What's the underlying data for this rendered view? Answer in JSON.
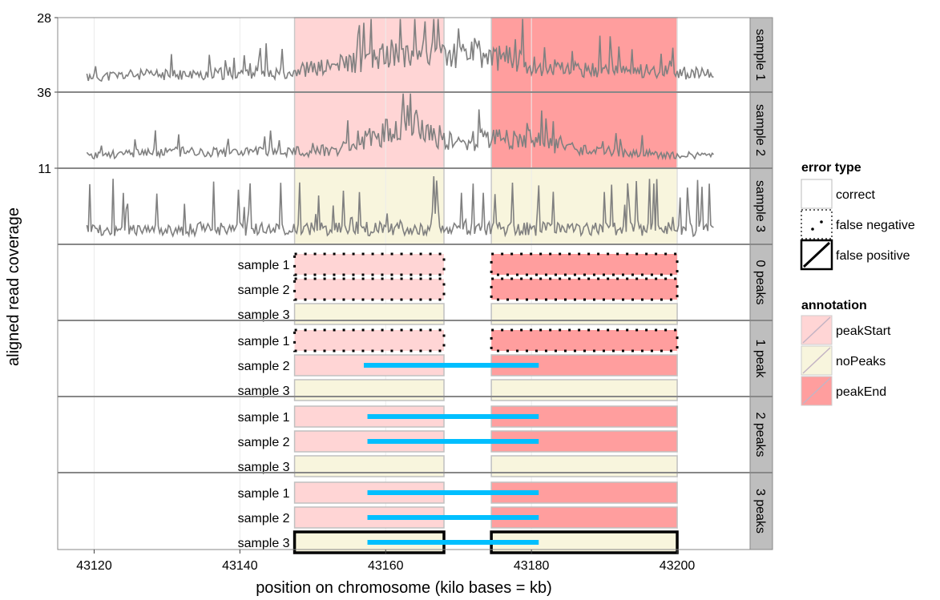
{
  "chart_data": {
    "type": "line",
    "xlabel": "position on chromosome (kilo bases = kb)",
    "ylabel": "aligned read coverage",
    "xlim": [
      43115,
      43210
    ],
    "x_ticks": [
      43120,
      43140,
      43160,
      43180,
      43200
    ],
    "grid": true,
    "coverage_panels": [
      {
        "strip": "sample 1",
        "ymax_label": "28",
        "ymax": 28,
        "noise_seed": 11,
        "trace": [
          [
            43119,
            4
          ],
          [
            43125,
            5
          ],
          [
            43130,
            5
          ],
          [
            43135,
            5
          ],
          [
            43140,
            6
          ],
          [
            43145,
            6
          ],
          [
            43148,
            7
          ],
          [
            43152,
            8
          ],
          [
            43155,
            10
          ],
          [
            43158,
            11
          ],
          [
            43160,
            13
          ],
          [
            43162,
            14
          ],
          [
            43164,
            15
          ],
          [
            43166,
            14
          ],
          [
            43168,
            13
          ],
          [
            43170,
            13
          ],
          [
            43172,
            14
          ],
          [
            43174,
            12
          ],
          [
            43176,
            12
          ],
          [
            43178,
            11
          ],
          [
            43180,
            9
          ],
          [
            43182,
            8
          ],
          [
            43186,
            7
          ],
          [
            43190,
            7
          ],
          [
            43195,
            7
          ],
          [
            43200,
            6
          ],
          [
            43205,
            5
          ]
        ]
      },
      {
        "strip": "sample 2",
        "ymax_label": "36",
        "ymax": 36,
        "noise_seed": 23,
        "trace": [
          [
            43119,
            4
          ],
          [
            43125,
            5
          ],
          [
            43130,
            6
          ],
          [
            43135,
            6
          ],
          [
            43140,
            6
          ],
          [
            43145,
            6
          ],
          [
            43150,
            6
          ],
          [
            43155,
            8
          ],
          [
            43158,
            13
          ],
          [
            43161,
            17
          ],
          [
            43163,
            22
          ],
          [
            43165,
            18
          ],
          [
            43167,
            14
          ],
          [
            43170,
            10
          ],
          [
            43173,
            12
          ],
          [
            43176,
            13
          ],
          [
            43178,
            12
          ],
          [
            43180,
            12
          ],
          [
            43183,
            9
          ],
          [
            43186,
            7
          ],
          [
            43190,
            6
          ],
          [
            43195,
            5
          ],
          [
            43200,
            4
          ],
          [
            43205,
            4
          ]
        ]
      },
      {
        "strip": "sample 3",
        "ymax_label": "11",
        "ymax": 11,
        "noise_seed": 37,
        "trace": [
          [
            43119,
            1.5
          ],
          [
            43130,
            1.8
          ],
          [
            43140,
            1.8
          ],
          [
            43150,
            1.8
          ],
          [
            43160,
            2
          ],
          [
            43170,
            1.8
          ],
          [
            43180,
            1.8
          ],
          [
            43190,
            1.8
          ],
          [
            43200,
            1.8
          ],
          [
            43205,
            1.5
          ]
        ]
      }
    ],
    "coverage_regions": [
      {
        "annotation": "peakStart",
        "samples": [
          "sample 1",
          "sample 2"
        ],
        "xmin": 43147.5,
        "xmax": 43168
      },
      {
        "annotation": "peakEnd",
        "samples": [
          "sample 1",
          "sample 2"
        ],
        "xmin": 43174.5,
        "xmax": 43200
      },
      {
        "annotation": "noPeaks",
        "samples": [
          "sample 3"
        ],
        "xmin": 43147.5,
        "xmax": 43168
      },
      {
        "annotation": "noPeaks",
        "samples": [
          "sample 3"
        ],
        "xmin": 43174.5,
        "xmax": 43200
      }
    ],
    "peak_panels": [
      {
        "strip": "0 peaks",
        "rows": [
          {
            "sample": "sample 1",
            "boxes": [
              {
                "annotation": "peakStart",
                "error": "false negative"
              },
              {
                "annotation": "peakEnd",
                "error": "false negative"
              }
            ],
            "peak": null
          },
          {
            "sample": "sample 2",
            "boxes": [
              {
                "annotation": "peakStart",
                "error": "false negative"
              },
              {
                "annotation": "peakEnd",
                "error": "false negative"
              }
            ],
            "peak": null
          },
          {
            "sample": "sample 3",
            "boxes": [
              {
                "annotation": "noPeaks",
                "error": "correct"
              },
              {
                "annotation": "noPeaks",
                "error": "correct"
              }
            ],
            "peak": null
          }
        ]
      },
      {
        "strip": "1 peak",
        "rows": [
          {
            "sample": "sample 1",
            "boxes": [
              {
                "annotation": "peakStart",
                "error": "false negative"
              },
              {
                "annotation": "peakEnd",
                "error": "false negative"
              }
            ],
            "peak": null
          },
          {
            "sample": "sample 2",
            "boxes": [
              {
                "annotation": "peakStart",
                "error": "correct"
              },
              {
                "annotation": "peakEnd",
                "error": "correct"
              }
            ],
            "peak": [
              43157,
              43181
            ]
          },
          {
            "sample": "sample 3",
            "boxes": [
              {
                "annotation": "noPeaks",
                "error": "correct"
              },
              {
                "annotation": "noPeaks",
                "error": "correct"
              }
            ],
            "peak": null
          }
        ]
      },
      {
        "strip": "2 peaks",
        "rows": [
          {
            "sample": "sample 1",
            "boxes": [
              {
                "annotation": "peakStart",
                "error": "correct"
              },
              {
                "annotation": "peakEnd",
                "error": "correct"
              }
            ],
            "peak": [
              43157.5,
              43181
            ]
          },
          {
            "sample": "sample 2",
            "boxes": [
              {
                "annotation": "peakStart",
                "error": "correct"
              },
              {
                "annotation": "peakEnd",
                "error": "correct"
              }
            ],
            "peak": [
              43157.5,
              43181
            ]
          },
          {
            "sample": "sample 3",
            "boxes": [
              {
                "annotation": "noPeaks",
                "error": "correct"
              },
              {
                "annotation": "noPeaks",
                "error": "correct"
              }
            ],
            "peak": null
          }
        ]
      },
      {
        "strip": "3 peaks",
        "rows": [
          {
            "sample": "sample 1",
            "boxes": [
              {
                "annotation": "peakStart",
                "error": "correct"
              },
              {
                "annotation": "peakEnd",
                "error": "correct"
              }
            ],
            "peak": [
              43157.5,
              43181
            ]
          },
          {
            "sample": "sample 2",
            "boxes": [
              {
                "annotation": "peakStart",
                "error": "correct"
              },
              {
                "annotation": "peakEnd",
                "error": "correct"
              }
            ],
            "peak": [
              43157.5,
              43181
            ]
          },
          {
            "sample": "sample 3",
            "boxes": [
              {
                "annotation": "noPeaks",
                "error": "false positive"
              },
              {
                "annotation": "noPeaks",
                "error": "false positive"
              }
            ],
            "peak": [
              43157.5,
              43181
            ]
          }
        ]
      }
    ],
    "legend": {
      "placement": "right",
      "error_title": "error type",
      "error_items": [
        "correct",
        "false negative",
        "false positive"
      ],
      "annotation_title": "annotation",
      "annotation_items": [
        "peakStart",
        "noPeaks",
        "peakEnd"
      ]
    },
    "colors": {
      "peakStart": "#ffd5d5",
      "noPeaks": "#f8f5dd",
      "peakEnd": "#ff9e9e",
      "coverage_line": "#808080",
      "peak_segment": "#00bfff",
      "strip": "#bebebe"
    }
  }
}
